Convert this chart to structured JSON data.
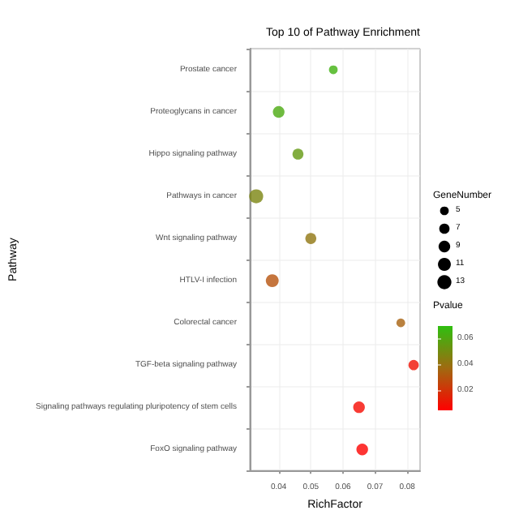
{
  "chart_data": {
    "type": "scatter",
    "title": "Top 10 of Pathway Enrichment",
    "xlabel": "RichFactor",
    "ylabel": "Pathway",
    "orientation": "horizontal",
    "categories": [
      "Prostate cancer",
      "Proteoglycans in cancer",
      "Hippo signaling pathway",
      "Pathways in cancer",
      "Wnt signaling pathway",
      "HTLV-I infection",
      "Colorectal cancer",
      "TGF-beta signaling pathway",
      "Signaling pathways regulating pluripotency of stem cells",
      "FoxO signaling pathway"
    ],
    "values": [
      0.057,
      0.04,
      0.046,
      0.033,
      0.05,
      0.038,
      0.078,
      0.082,
      0.065,
      0.066
    ],
    "sizes": [
      5,
      9,
      8,
      13,
      8,
      11,
      5,
      7,
      9,
      9
    ],
    "cvalues": [
      0.065,
      0.062,
      0.055,
      0.048,
      0.042,
      0.03,
      0.035,
      0.01,
      0.008,
      0.006
    ],
    "size_legend": [
      5,
      7,
      9,
      11,
      13
    ],
    "legend_title": "GeneNumber",
    "clabel": "Pvalue",
    "clim": [
      0.005,
      0.07
    ],
    "cticks": [
      0.02,
      0.04,
      0.06
    ],
    "xlim": [
      0.031,
      0.084
    ],
    "xticks": [
      0.04,
      0.05,
      0.06,
      0.07,
      0.08
    ],
    "grid": true,
    "marker": "circle"
  }
}
